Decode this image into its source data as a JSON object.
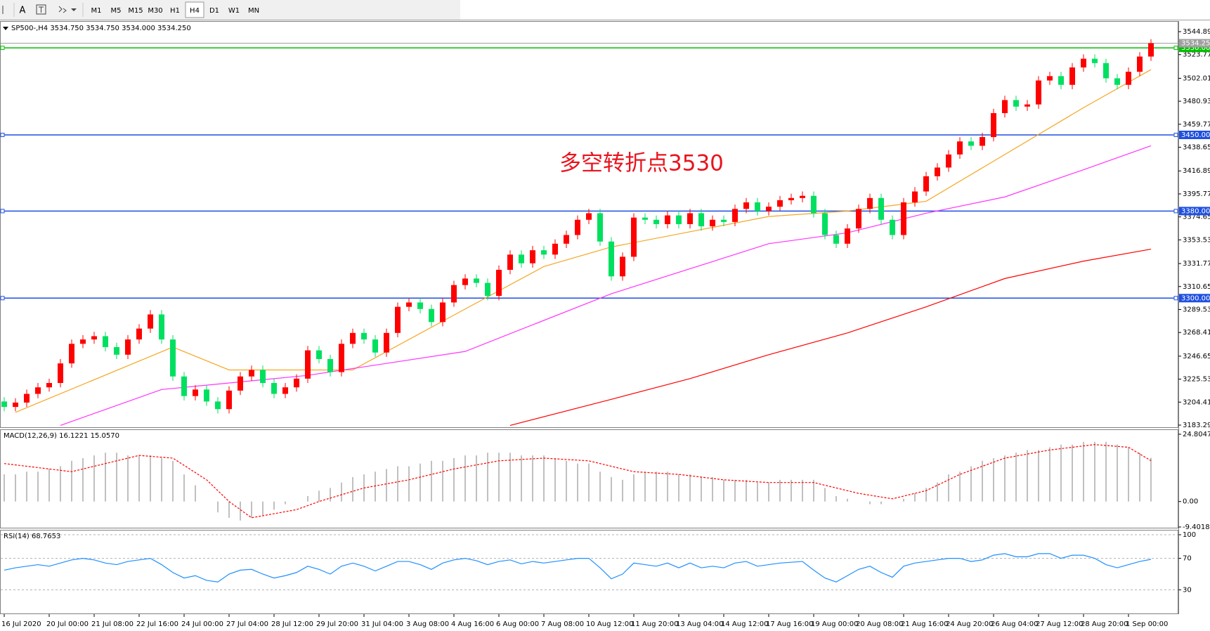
{
  "toolbar": {
    "text_tool": "A",
    "timeframes": [
      "M1",
      "M5",
      "M15",
      "M30",
      "H1",
      "H4",
      "D1",
      "W1",
      "MN"
    ],
    "active": "H4"
  },
  "chart_data": [
    {
      "type": "candlestick",
      "title": "SP500-,H4  3534.750 3534.750 3534.000 3534.250",
      "annotation": "多空转折点3530",
      "categories": [
        "16 Jul 2020",
        null,
        null,
        null,
        "20 Jul 00:00",
        null,
        null,
        null,
        "21 Jul 08:00",
        null,
        null,
        null,
        "22 Jul 16:00",
        null,
        null,
        null,
        "24 Jul 00:00",
        null,
        null,
        null,
        "27 Jul 04:00",
        null,
        null,
        null,
        "28 Jul 12:00",
        null,
        null,
        null,
        "29 Jul 20:00",
        null,
        null,
        null,
        "31 Jul 04:00",
        null,
        null,
        null,
        "3 Aug 08:00",
        null,
        null,
        null,
        "4 Aug 16:00",
        null,
        null,
        null,
        "6 Aug 00:00",
        null,
        null,
        null,
        "7 Aug 08:00",
        null,
        null,
        null,
        "10 Aug 12:00",
        null,
        null,
        null,
        "11 Aug 20:00",
        null,
        null,
        null,
        "13 Aug 04:00",
        null,
        null,
        null,
        "14 Aug 12:00",
        null,
        null,
        null,
        "17 Aug 16:00",
        null,
        null,
        null,
        "19 Aug 00:00",
        null,
        null,
        null,
        "20 Aug 08:00",
        null,
        null,
        null,
        "21 Aug 16:00",
        null,
        null,
        null,
        "24 Aug 20:00",
        null,
        null,
        null,
        "26 Aug 04:00",
        null,
        null,
        null,
        "27 Aug 12:00",
        null,
        null,
        null,
        "28 Aug 20:00",
        null,
        null,
        null,
        "1 Sep 00:00",
        null,
        null
      ],
      "open": [
        3205,
        3200,
        3204,
        3212,
        3218,
        3222,
        3240,
        3258,
        3262,
        3265,
        3255,
        3248,
        3262,
        3272,
        3285,
        3262,
        3228,
        3210,
        3216,
        3205,
        3198,
        3215,
        3228,
        3234,
        3222,
        3212,
        3218,
        3226,
        3252,
        3244,
        3232,
        3258,
        3268,
        3262,
        3250,
        3268,
        3292,
        3296,
        3290,
        3278,
        3296,
        3312,
        3318,
        3314,
        3302,
        3326,
        3340,
        3332,
        3344,
        3340,
        3350,
        3358,
        3372,
        3378,
        3352,
        3320,
        3338,
        3374,
        3372,
        3368,
        3376,
        3368,
        3378,
        3366,
        3372,
        3370,
        3382,
        3388,
        3380,
        3384,
        3390,
        3392,
        3394,
        3378,
        3358,
        3350,
        3364,
        3382,
        3392,
        3372,
        3358,
        3388,
        3398,
        3412,
        3420,
        3432,
        3444,
        3440,
        3448,
        3470,
        3482,
        3476,
        3478,
        3500,
        3504,
        3496,
        3512,
        3520,
        3516,
        3502,
        3496,
        3508,
        3522
      ],
      "high": [
        3209,
        3208,
        3216,
        3222,
        3226,
        3244,
        3262,
        3266,
        3269,
        3269,
        3259,
        3266,
        3276,
        3289,
        3289,
        3266,
        3232,
        3220,
        3220,
        3209,
        3219,
        3232,
        3238,
        3238,
        3226,
        3222,
        3230,
        3256,
        3256,
        3248,
        3262,
        3272,
        3272,
        3266,
        3272,
        3296,
        3300,
        3300,
        3294,
        3300,
        3316,
        3322,
        3322,
        3318,
        3330,
        3344,
        3344,
        3348,
        3348,
        3354,
        3362,
        3376,
        3382,
        3382,
        3356,
        3342,
        3378,
        3378,
        3376,
        3380,
        3380,
        3382,
        3382,
        3376,
        3376,
        3386,
        3392,
        3392,
        3388,
        3394,
        3396,
        3398,
        3398,
        3382,
        3362,
        3368,
        3386,
        3396,
        3396,
        3376,
        3392,
        3402,
        3416,
        3424,
        3436,
        3448,
        3448,
        3452,
        3474,
        3486,
        3486,
        3482,
        3504,
        3508,
        3508,
        3516,
        3524,
        3524,
        3520,
        3506,
        3512,
        3526,
        3538
      ],
      "low": [
        3196,
        3196,
        3200,
        3208,
        3214,
        3218,
        3236,
        3254,
        3258,
        3251,
        3244,
        3244,
        3258,
        3268,
        3258,
        3224,
        3206,
        3206,
        3201,
        3194,
        3194,
        3211,
        3224,
        3218,
        3208,
        3208,
        3214,
        3222,
        3240,
        3228,
        3228,
        3254,
        3258,
        3246,
        3246,
        3264,
        3288,
        3286,
        3274,
        3274,
        3292,
        3308,
        3310,
        3298,
        3298,
        3322,
        3328,
        3328,
        3336,
        3336,
        3346,
        3354,
        3368,
        3348,
        3316,
        3316,
        3334,
        3368,
        3364,
        3364,
        3364,
        3364,
        3362,
        3362,
        3366,
        3366,
        3378,
        3376,
        3376,
        3380,
        3386,
        3388,
        3374,
        3354,
        3346,
        3346,
        3360,
        3378,
        3368,
        3354,
        3354,
        3384,
        3394,
        3408,
        3416,
        3428,
        3436,
        3436,
        3444,
        3466,
        3472,
        3472,
        3474,
        3496,
        3492,
        3492,
        3508,
        3512,
        3498,
        3492,
        3492,
        3504,
        3518
      ],
      "close": [
        3200,
        3204,
        3212,
        3218,
        3222,
        3240,
        3258,
        3262,
        3265,
        3255,
        3248,
        3262,
        3272,
        3285,
        3262,
        3228,
        3210,
        3216,
        3205,
        3198,
        3215,
        3228,
        3234,
        3222,
        3212,
        3218,
        3226,
        3252,
        3244,
        3232,
        3258,
        3268,
        3262,
        3250,
        3268,
        3292,
        3296,
        3290,
        3278,
        3296,
        3312,
        3318,
        3314,
        3302,
        3326,
        3340,
        3332,
        3344,
        3340,
        3350,
        3358,
        3372,
        3378,
        3352,
        3320,
        3338,
        3374,
        3372,
        3368,
        3376,
        3368,
        3378,
        3366,
        3372,
        3370,
        3382,
        3388,
        3380,
        3384,
        3390,
        3392,
        3394,
        3378,
        3358,
        3350,
        3364,
        3382,
        3392,
        3372,
        3358,
        3388,
        3398,
        3412,
        3420,
        3432,
        3444,
        3440,
        3448,
        3470,
        3482,
        3476,
        3478,
        3500,
        3504,
        3496,
        3512,
        3520,
        3516,
        3502,
        3496,
        3508,
        3522,
        3534.25
      ],
      "up_color": "#ff0000",
      "down_color": "#00e060",
      "ylim": [
        3180.7,
        3554.6
      ],
      "yticks": [
        {
          "value": 3544.89,
          "label": "3544.890"
        },
        {
          "value": 3523.77,
          "label": "3523.770"
        },
        {
          "value": 3502.01,
          "label": "3502.010"
        },
        {
          "value": 3480.93,
          "label": "3480.930"
        },
        {
          "value": 3459.77,
          "label": "3459.770"
        },
        {
          "value": 3438.65,
          "label": "3438.650"
        },
        {
          "value": 3416.89,
          "label": "3416.890"
        },
        {
          "value": 3395.77,
          "label": "3395.770"
        },
        {
          "value": 3374.65,
          "label": "3374.650"
        },
        {
          "value": 3353.53,
          "label": "3353.530"
        },
        {
          "value": 3331.77,
          "label": "3331.770"
        },
        {
          "value": 3310.65,
          "label": "3310.650"
        },
        {
          "value": 3289.53,
          "label": "3289.530"
        },
        {
          "value": 3268.41,
          "label": "3268.410"
        },
        {
          "value": 3246.65,
          "label": "3246.650"
        },
        {
          "value": 3225.53,
          "label": "3225.530"
        },
        {
          "value": 3204.41,
          "label": "3204.410"
        },
        {
          "value": 3183.29,
          "label": "3183.290"
        }
      ],
      "levels": [
        {
          "value": 3530,
          "label": "3530.000",
          "color": "#00c000"
        },
        {
          "value": 3450,
          "label": "3450.000",
          "color": "#1f4fe0"
        },
        {
          "value": 3380,
          "label": "3380.000",
          "color": "#1f4fe0"
        },
        {
          "value": 3300,
          "label": "3300.000",
          "color": "#1f4fe0"
        }
      ],
      "current": {
        "value": 3534.25,
        "label": "3534.250",
        "color": "#a0a0a0"
      },
      "overlays": [
        {
          "color": "#f5a623",
          "x": [
            1,
            15,
            20,
            31,
            41,
            48,
            54,
            61,
            68,
            75,
            82,
            89,
            96,
            102
          ],
          "values": [
            3195,
            3255,
            3234,
            3234,
            3290,
            3329,
            3347,
            3361,
            3375,
            3380,
            3389,
            3432,
            3475,
            3510
          ]
        },
        {
          "color": "#ff33ff",
          "x": [
            5,
            14,
            27,
            41,
            54,
            68,
            75,
            82,
            89,
            96,
            102
          ],
          "values": [
            3183,
            3216,
            3229,
            3251,
            3304,
            3350,
            3360,
            3378,
            3393,
            3418,
            3440
          ]
        },
        {
          "color": "#ff0000",
          "x": [
            45,
            54,
            61,
            68,
            75,
            82,
            89,
            96,
            102
          ],
          "values": [
            3183,
            3207,
            3226,
            3248,
            3268,
            3292,
            3318,
            3334,
            3345
          ]
        }
      ]
    },
    {
      "type": "macd",
      "title": "MACD(12,26,9) 16.1221 15.0570",
      "color": "#c0c0c0",
      "values": [
        10,
        10,
        11,
        11,
        12,
        13,
        15,
        16,
        17,
        18,
        18,
        17,
        17,
        17,
        16,
        15,
        10,
        6,
        0,
        -4,
        -6,
        -7,
        -6,
        -5,
        -3,
        -1,
        0,
        2,
        4,
        5,
        7,
        9,
        10,
        11,
        12,
        13,
        13,
        14,
        15,
        15,
        16,
        17,
        17,
        18,
        18,
        18,
        17,
        17,
        17,
        16,
        15,
        14,
        14,
        11,
        9,
        8,
        10,
        11,
        11,
        11,
        10,
        10,
        9,
        9,
        8,
        8,
        8,
        7,
        7,
        8,
        8,
        8,
        8,
        5,
        2,
        1,
        0,
        -1,
        -1,
        0,
        1,
        3,
        5,
        7,
        10,
        11,
        13,
        15,
        16,
        17,
        18,
        19,
        19,
        20,
        21,
        21,
        22,
        22,
        22,
        21,
        20,
        18,
        16.1221
      ],
      "signal": {
        "color": "#ff0000",
        "x": [
          0,
          6,
          12,
          15,
          18,
          20,
          22,
          26,
          28,
          32,
          36,
          40,
          44,
          48,
          52,
          56,
          60,
          64,
          68,
          72,
          76,
          79,
          82,
          85,
          89,
          93,
          97,
          100,
          102
        ],
        "values": [
          14,
          11,
          17,
          16,
          8,
          0,
          -6,
          -3,
          0,
          5,
          8,
          12,
          15,
          16,
          15,
          11,
          10,
          8,
          7,
          7,
          3,
          1,
          4,
          10,
          16,
          19,
          21,
          20,
          15.057
        ]
      },
      "ylim": [
        -9.4018,
        24.8047
      ],
      "yticks": [
        24.8047,
        {
          "value": 0,
          "label": "0.00"
        },
        -9.4018
      ]
    },
    {
      "type": "line",
      "title": "RSI(14) 68.7653",
      "color": "#1e90ff",
      "values": [
        55,
        58,
        60,
        62,
        60,
        64,
        68,
        70,
        68,
        64,
        62,
        66,
        68,
        70,
        62,
        52,
        45,
        48,
        42,
        40,
        50,
        55,
        56,
        50,
        45,
        48,
        52,
        60,
        56,
        50,
        60,
        64,
        60,
        54,
        60,
        66,
        66,
        62,
        56,
        64,
        68,
        70,
        67,
        62,
        66,
        68,
        63,
        66,
        64,
        66,
        68,
        70,
        70,
        58,
        44,
        50,
        64,
        62,
        60,
        64,
        58,
        64,
        58,
        60,
        58,
        64,
        66,
        60,
        62,
        64,
        65,
        66,
        55,
        45,
        40,
        48,
        56,
        60,
        52,
        46,
        60,
        64,
        66,
        68,
        70,
        70,
        66,
        68,
        74,
        76,
        72,
        72,
        76,
        76,
        70,
        74,
        74,
        70,
        62,
        58,
        62,
        66,
        68.7653
      ],
      "ylim": [
        0,
        100
      ],
      "yticks": [
        100,
        70,
        30
      ],
      "grid": "dashed"
    }
  ]
}
